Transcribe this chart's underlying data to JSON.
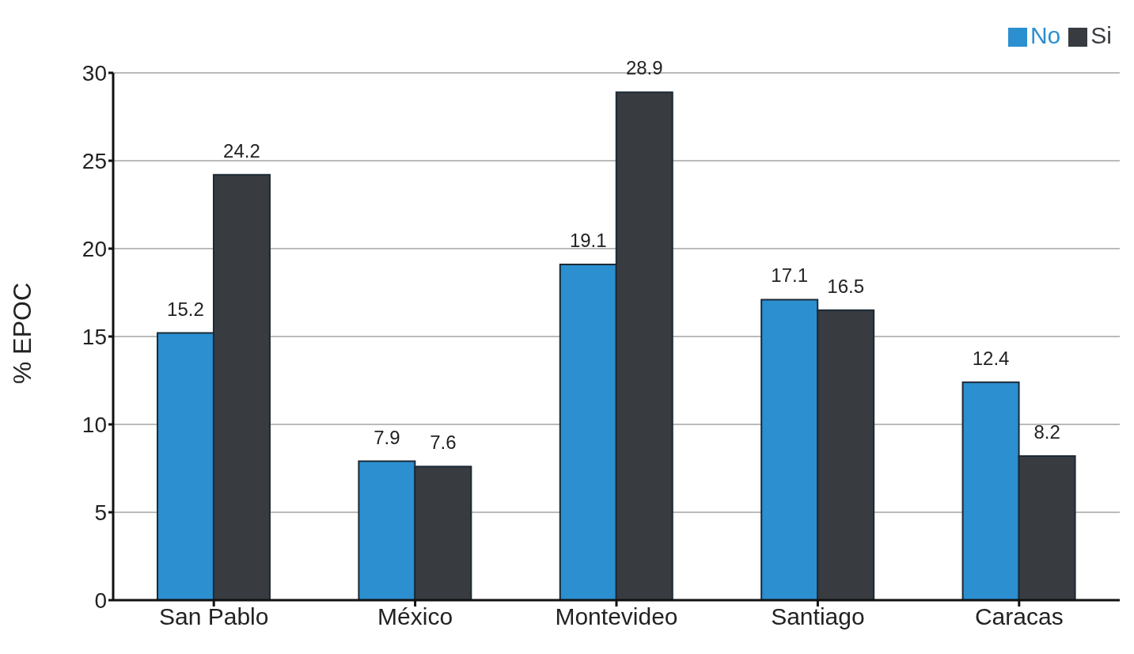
{
  "chart_data": {
    "type": "bar",
    "ylabel": "% EPOC",
    "categories": [
      "San Pablo",
      "México",
      "Montevideo",
      "Santiago",
      "Caracas"
    ],
    "series": [
      {
        "name": "No",
        "color": "#2b8fd0",
        "values": [
          15.2,
          7.9,
          19.1,
          17.1,
          12.4
        ]
      },
      {
        "name": "Si",
        "color": "#383c40",
        "values": [
          24.2,
          7.6,
          28.9,
          16.5,
          8.2
        ]
      }
    ],
    "ylim": [
      0,
      30
    ],
    "yticks": [
      0,
      5,
      10,
      15,
      20,
      25,
      30
    ],
    "grid": "y",
    "legend": "top right",
    "data_labels": true
  }
}
